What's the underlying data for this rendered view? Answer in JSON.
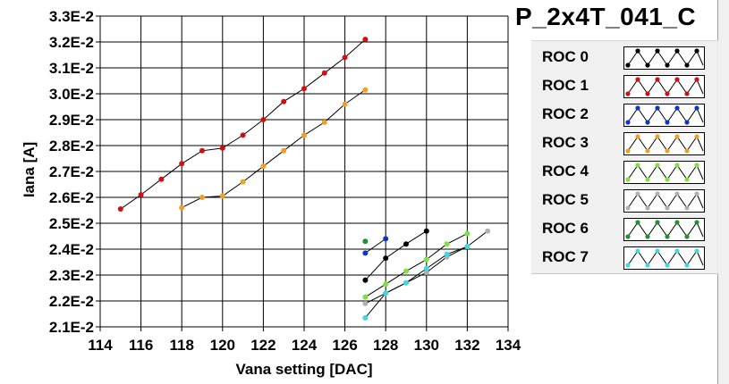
{
  "title": "P_2x4T_041_C",
  "legend": [
    {
      "label": "ROC 0",
      "color": "#000000"
    },
    {
      "label": "ROC 1",
      "color": "#d01010"
    },
    {
      "label": "ROC 2",
      "color": "#0838c8"
    },
    {
      "label": "ROC 3",
      "color": "#f0a020"
    },
    {
      "label": "ROC 4",
      "color": "#80e040"
    },
    {
      "label": "ROC 5",
      "color": "#b0b0b0"
    },
    {
      "label": "ROC 6",
      "color": "#209030"
    },
    {
      "label": "ROC 7",
      "color": "#40d8e0"
    }
  ],
  "chart_data": {
    "type": "scatter",
    "title": "P_2x4T_041_C",
    "xlabel": "Vana setting [DAC]",
    "ylabel": "Iana [A]",
    "xlim": [
      114,
      134
    ],
    "ylim": [
      0.021,
      0.033
    ],
    "x_ticks": [
      "114",
      "116",
      "118",
      "120",
      "122",
      "124",
      "126",
      "128",
      "130",
      "132",
      "134"
    ],
    "y_ticks": [
      "2.1E-2",
      "2.2E-2",
      "2.3E-2",
      "2.4E-2",
      "2.5E-2",
      "2.6E-2",
      "2.7E-2",
      "2.8E-2",
      "2.9E-2",
      "3.0E-2",
      "3.1E-2",
      "3.2E-2",
      "3.3E-2"
    ],
    "grid": true,
    "legend_position": "right",
    "series": [
      {
        "name": "ROC 0",
        "color": "#000000",
        "x": [
          127,
          128,
          129,
          130
        ],
        "y": [
          0.0228,
          0.02365,
          0.0242,
          0.0247
        ]
      },
      {
        "name": "ROC 1",
        "color": "#d01010",
        "x": [
          115,
          116,
          117,
          118,
          119,
          120,
          121,
          122,
          123,
          124,
          125,
          126,
          127
        ],
        "y": [
          0.02555,
          0.0261,
          0.0267,
          0.0273,
          0.0278,
          0.0279,
          0.0284,
          0.029,
          0.0297,
          0.0302,
          0.0308,
          0.0314,
          0.0321
        ]
      },
      {
        "name": "ROC 2",
        "color": "#0838c8",
        "x": [
          127,
          128
        ],
        "y": [
          0.02385,
          0.0244
        ]
      },
      {
        "name": "ROC 3",
        "color": "#f0a020",
        "x": [
          118,
          119,
          120,
          121,
          122,
          123,
          124,
          125,
          126,
          127
        ],
        "y": [
          0.0256,
          0.026,
          0.02605,
          0.0266,
          0.0272,
          0.0278,
          0.0284,
          0.0289,
          0.0296,
          0.03015
        ]
      },
      {
        "name": "ROC 4",
        "color": "#80e040",
        "x": [
          127,
          128,
          129,
          130,
          131,
          132
        ],
        "y": [
          0.02215,
          0.02265,
          0.02315,
          0.0236,
          0.0242,
          0.0246
        ]
      },
      {
        "name": "ROC 5",
        "color": "#b0b0b0",
        "x": [
          127,
          128,
          129,
          130,
          131,
          132,
          133
        ],
        "y": [
          0.0219,
          0.0223,
          0.0227,
          0.0231,
          0.0237,
          0.0241,
          0.0247
        ]
      },
      {
        "name": "ROC 6",
        "color": "#209030",
        "x": [
          127
        ],
        "y": [
          0.0243
        ]
      },
      {
        "name": "ROC 7",
        "color": "#40d8e0",
        "x": [
          127,
          128,
          129,
          130,
          131,
          132
        ],
        "y": [
          0.02135,
          0.0223,
          0.0227,
          0.02325,
          0.0238,
          0.0241
        ]
      }
    ]
  }
}
